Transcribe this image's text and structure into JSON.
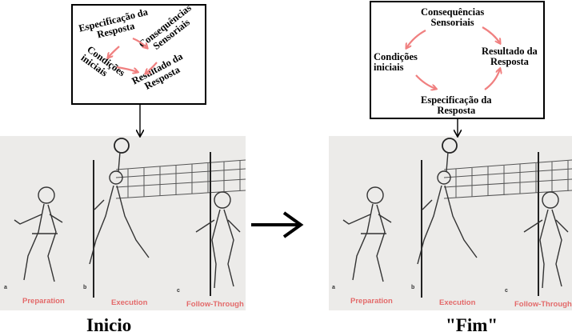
{
  "left_diagram": {
    "especificacao": "Especificação da\nResposta",
    "consequencias": "Consequências\nSensoriais",
    "condicoes": "Condições\niniciais",
    "resultado": "Resultado da\nResposta"
  },
  "right_diagram": {
    "consequencias": "Consequências\nSensoriais",
    "condicoes": "Condições\niniciais",
    "resultado": "Resultado da\nResposta",
    "especificacao": "Especificação da\nResposta"
  },
  "photo_captions": {
    "preparation": "Preparation",
    "execution": "Execution",
    "follow_through": "Follow-Through",
    "panel_a": "a",
    "panel_b": "b",
    "panel_c": "c"
  },
  "labels": {
    "inicio": "Inicio",
    "fim": "\"Fim\""
  },
  "colors": {
    "arrow_pink": "#f08080",
    "caption_red": "#e36a6a"
  }
}
